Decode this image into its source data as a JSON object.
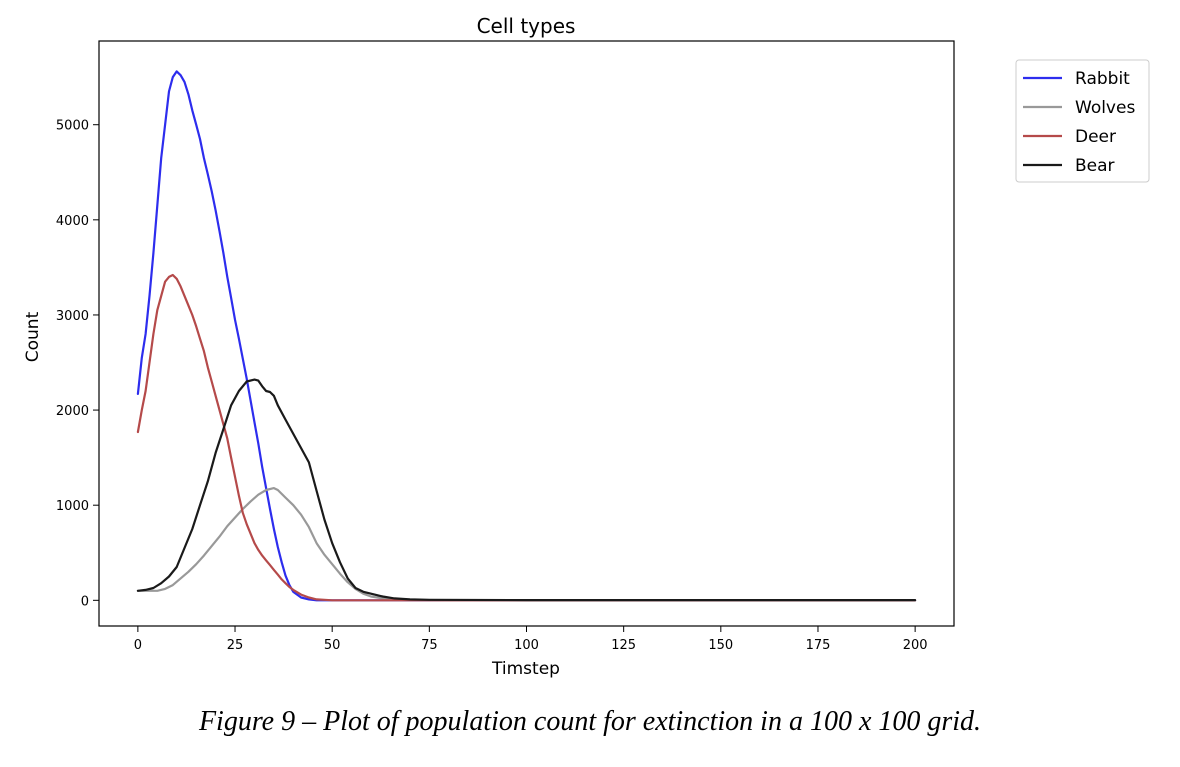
{
  "chart_data": {
    "type": "line",
    "title": "Cell types",
    "xlabel": "Timstep",
    "ylabel": "Count",
    "xlim": [
      -10,
      210
    ],
    "ylim": [
      -270,
      5880
    ],
    "xticks": [
      0,
      25,
      50,
      75,
      100,
      125,
      150,
      175,
      200
    ],
    "yticks": [
      0,
      1000,
      2000,
      3000,
      4000,
      5000
    ],
    "grid": false,
    "legend_position": "outside-top-right",
    "series": [
      {
        "name": "Rabbit",
        "color": "#2d2dee",
        "points": [
          [
            0,
            2170
          ],
          [
            1,
            2550
          ],
          [
            2,
            2800
          ],
          [
            3,
            3200
          ],
          [
            4,
            3650
          ],
          [
            5,
            4150
          ],
          [
            6,
            4650
          ],
          [
            7,
            5000
          ],
          [
            8,
            5350
          ],
          [
            9,
            5500
          ],
          [
            10,
            5560
          ],
          [
            11,
            5520
          ],
          [
            12,
            5450
          ],
          [
            13,
            5320
          ],
          [
            14,
            5150
          ],
          [
            15,
            5000
          ],
          [
            16,
            4850
          ],
          [
            17,
            4650
          ],
          [
            18,
            4480
          ],
          [
            19,
            4300
          ],
          [
            20,
            4100
          ],
          [
            21,
            3880
          ],
          [
            22,
            3650
          ],
          [
            23,
            3400
          ],
          [
            24,
            3180
          ],
          [
            25,
            2950
          ],
          [
            26,
            2750
          ],
          [
            27,
            2540
          ],
          [
            28,
            2330
          ],
          [
            29,
            2100
          ],
          [
            30,
            1870
          ],
          [
            31,
            1650
          ],
          [
            32,
            1400
          ],
          [
            33,
            1180
          ],
          [
            34,
            960
          ],
          [
            35,
            750
          ],
          [
            36,
            560
          ],
          [
            37,
            400
          ],
          [
            38,
            260
          ],
          [
            39,
            160
          ],
          [
            40,
            90
          ],
          [
            42,
            30
          ],
          [
            44,
            10
          ],
          [
            46,
            0
          ],
          [
            200,
            0
          ]
        ]
      },
      {
        "name": "Wolves",
        "color": "#999999",
        "points": [
          [
            0,
            100
          ],
          [
            5,
            100
          ],
          [
            7,
            120
          ],
          [
            9,
            160
          ],
          [
            11,
            230
          ],
          [
            13,
            300
          ],
          [
            15,
            380
          ],
          [
            17,
            470
          ],
          [
            19,
            570
          ],
          [
            21,
            670
          ],
          [
            23,
            780
          ],
          [
            25,
            870
          ],
          [
            27,
            960
          ],
          [
            29,
            1040
          ],
          [
            31,
            1110
          ],
          [
            33,
            1160
          ],
          [
            35,
            1180
          ],
          [
            36,
            1160
          ],
          [
            38,
            1080
          ],
          [
            40,
            1000
          ],
          [
            42,
            900
          ],
          [
            44,
            770
          ],
          [
            46,
            600
          ],
          [
            48,
            480
          ],
          [
            50,
            380
          ],
          [
            52,
            280
          ],
          [
            54,
            190
          ],
          [
            56,
            120
          ],
          [
            58,
            70
          ],
          [
            60,
            40
          ],
          [
            63,
            20
          ],
          [
            66,
            10
          ],
          [
            70,
            5
          ],
          [
            80,
            0
          ],
          [
            200,
            0
          ]
        ]
      },
      {
        "name": "Deer",
        "color": "#b54a4a",
        "points": [
          [
            0,
            1770
          ],
          [
            1,
            2000
          ],
          [
            2,
            2200
          ],
          [
            3,
            2500
          ],
          [
            4,
            2800
          ],
          [
            5,
            3050
          ],
          [
            6,
            3200
          ],
          [
            7,
            3350
          ],
          [
            8,
            3400
          ],
          [
            9,
            3420
          ],
          [
            10,
            3380
          ],
          [
            11,
            3300
          ],
          [
            12,
            3200
          ],
          [
            13,
            3100
          ],
          [
            14,
            3000
          ],
          [
            15,
            2880
          ],
          [
            16,
            2750
          ],
          [
            17,
            2620
          ],
          [
            18,
            2450
          ],
          [
            19,
            2300
          ],
          [
            20,
            2150
          ],
          [
            21,
            2000
          ],
          [
            22,
            1850
          ],
          [
            23,
            1700
          ],
          [
            24,
            1500
          ],
          [
            25,
            1300
          ],
          [
            26,
            1100
          ],
          [
            27,
            920
          ],
          [
            28,
            800
          ],
          [
            29,
            700
          ],
          [
            30,
            600
          ],
          [
            31,
            530
          ],
          [
            32,
            470
          ],
          [
            33,
            420
          ],
          [
            34,
            370
          ],
          [
            35,
            320
          ],
          [
            36,
            270
          ],
          [
            37,
            220
          ],
          [
            38,
            180
          ],
          [
            39,
            140
          ],
          [
            40,
            110
          ],
          [
            42,
            60
          ],
          [
            44,
            30
          ],
          [
            46,
            10
          ],
          [
            48,
            5
          ],
          [
            50,
            0
          ],
          [
            200,
            0
          ]
        ]
      },
      {
        "name": "Bear",
        "color": "#1a1a1a",
        "points": [
          [
            0,
            100
          ],
          [
            2,
            110
          ],
          [
            4,
            130
          ],
          [
            6,
            180
          ],
          [
            8,
            250
          ],
          [
            10,
            350
          ],
          [
            12,
            550
          ],
          [
            14,
            750
          ],
          [
            16,
            1000
          ],
          [
            18,
            1250
          ],
          [
            20,
            1550
          ],
          [
            22,
            1800
          ],
          [
            24,
            2050
          ],
          [
            26,
            2200
          ],
          [
            28,
            2300
          ],
          [
            30,
            2320
          ],
          [
            31,
            2310
          ],
          [
            32,
            2250
          ],
          [
            33,
            2200
          ],
          [
            34,
            2190
          ],
          [
            35,
            2150
          ],
          [
            36,
            2050
          ],
          [
            38,
            1900
          ],
          [
            40,
            1750
          ],
          [
            42,
            1600
          ],
          [
            44,
            1450
          ],
          [
            46,
            1150
          ],
          [
            48,
            850
          ],
          [
            50,
            600
          ],
          [
            52,
            400
          ],
          [
            54,
            230
          ],
          [
            56,
            130
          ],
          [
            58,
            90
          ],
          [
            60,
            70
          ],
          [
            63,
            40
          ],
          [
            66,
            20
          ],
          [
            70,
            10
          ],
          [
            75,
            5
          ],
          [
            100,
            2
          ],
          [
            200,
            2
          ]
        ]
      }
    ]
  },
  "caption": "Figure 9 – Plot of population count for extinction in a 100 x 100 grid."
}
